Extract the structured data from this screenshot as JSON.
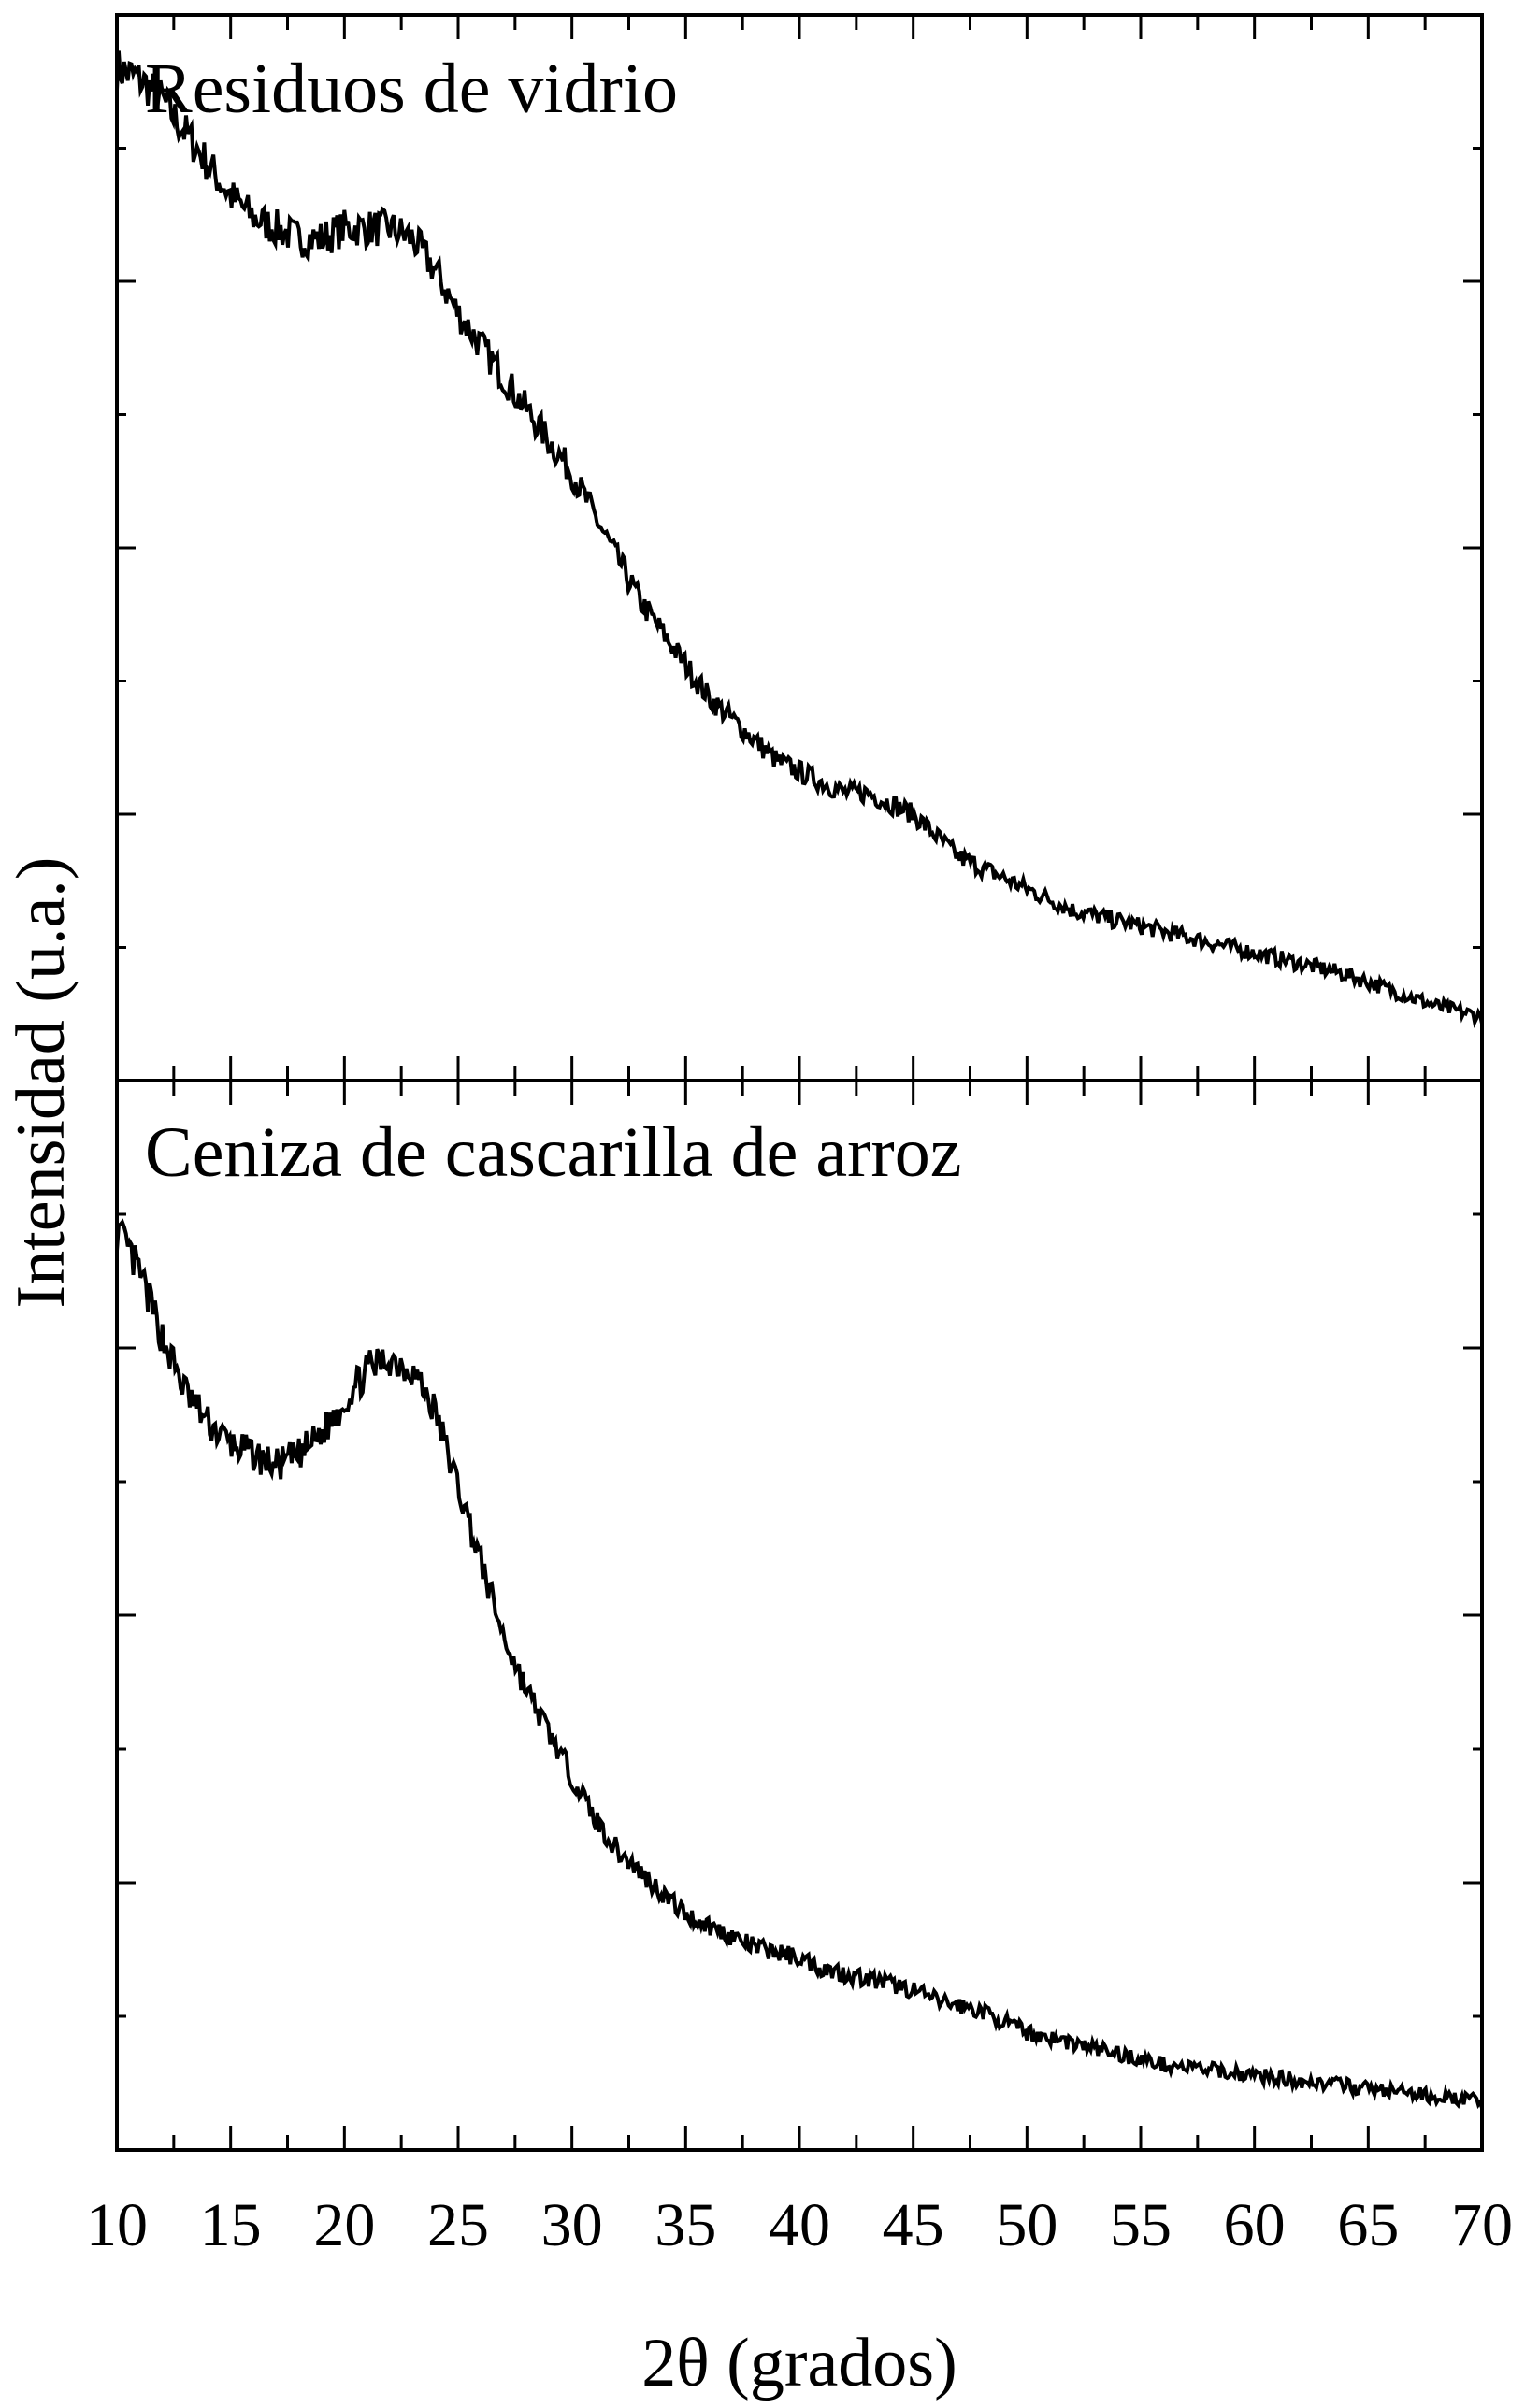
{
  "chart_data": [
    {
      "type": "line",
      "title": "Residuos de vidrio",
      "xlim": [
        10,
        70
      ],
      "y_ticks_labeled": false,
      "x": [
        10,
        11,
        12,
        13,
        14,
        15,
        16,
        17,
        18,
        19,
        20,
        21,
        22,
        23,
        24,
        25,
        26,
        27,
        28,
        29,
        30,
        31,
        32,
        33,
        34,
        35,
        36,
        37,
        38,
        39,
        40,
        41,
        42,
        43,
        44,
        45,
        46,
        47,
        48,
        49,
        50,
        52,
        54,
        56,
        58,
        60,
        62,
        64,
        66,
        68,
        70
      ],
      "y": [
        0.95,
        0.94,
        0.92,
        0.89,
        0.86,
        0.83,
        0.81,
        0.8,
        0.79,
        0.79,
        0.8,
        0.8,
        0.8,
        0.79,
        0.76,
        0.72,
        0.69,
        0.66,
        0.63,
        0.6,
        0.57,
        0.53,
        0.49,
        0.45,
        0.42,
        0.39,
        0.36,
        0.34,
        0.32,
        0.3,
        0.29,
        0.28,
        0.27,
        0.27,
        0.26,
        0.25,
        0.23,
        0.21,
        0.2,
        0.19,
        0.18,
        0.16,
        0.15,
        0.14,
        0.13,
        0.12,
        0.11,
        0.1,
        0.085,
        0.07,
        0.06
      ]
    },
    {
      "type": "line",
      "title": "Ceniza de cascarilla de arroz",
      "xlim": [
        10,
        70
      ],
      "y_ticks_labeled": false,
      "x": [
        10,
        11,
        12,
        13,
        14,
        15,
        16,
        17,
        18,
        19,
        20,
        21,
        22,
        23,
        24,
        25,
        26,
        27,
        28,
        29,
        30,
        31,
        32,
        33,
        34,
        35,
        36,
        37,
        38,
        39,
        40,
        41,
        42,
        43,
        44,
        45,
        46,
        47,
        48,
        49,
        50,
        52,
        54,
        56,
        58,
        60,
        62,
        64,
        66,
        68,
        70
      ],
      "y": [
        0.86,
        0.82,
        0.76,
        0.71,
        0.68,
        0.66,
        0.65,
        0.64,
        0.65,
        0.67,
        0.7,
        0.73,
        0.74,
        0.73,
        0.69,
        0.62,
        0.55,
        0.48,
        0.43,
        0.39,
        0.35,
        0.31,
        0.28,
        0.26,
        0.24,
        0.22,
        0.21,
        0.2,
        0.19,
        0.185,
        0.18,
        0.17,
        0.165,
        0.16,
        0.155,
        0.15,
        0.14,
        0.135,
        0.13,
        0.12,
        0.11,
        0.1,
        0.09,
        0.08,
        0.075,
        0.07,
        0.065,
        0.06,
        0.055,
        0.05,
        0.045
      ]
    }
  ],
  "x_axis": {
    "label": "2θ (grados)",
    "ticks": [
      10,
      15,
      20,
      25,
      30,
      35,
      40,
      45,
      50,
      55,
      60,
      65,
      70
    ]
  },
  "y_axis": {
    "label": "Intensidad (u.a.)"
  }
}
